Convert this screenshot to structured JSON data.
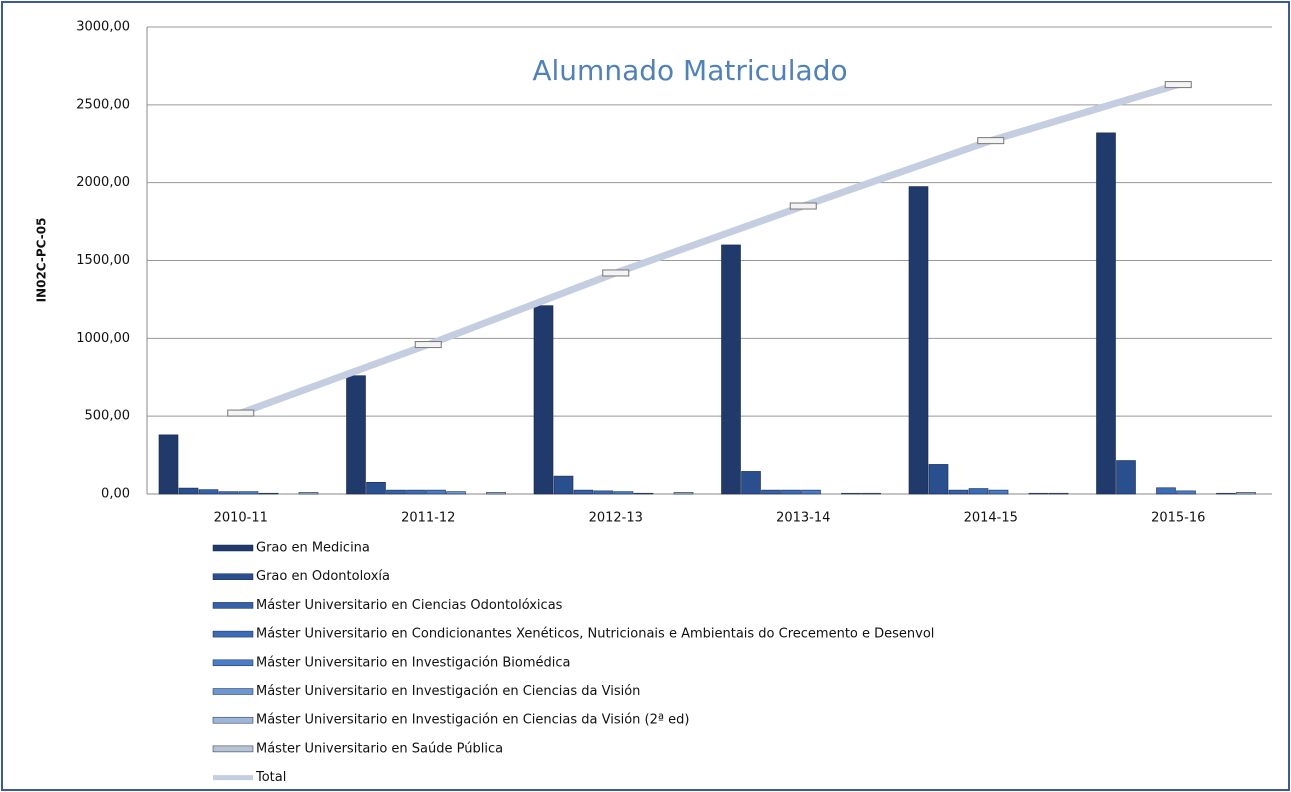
{
  "chart_data": {
    "type": "bar",
    "title": "Alumnado Matriculado",
    "y_label": "IN02C-PC-05",
    "categories": [
      "2010-11",
      "2011-12",
      "2012-13",
      "2013-14",
      "2014-15",
      "2015-16"
    ],
    "series": [
      {
        "name": "Grao en Medicina",
        "color": "#1f3a6b",
        "values": [
          380,
          760,
          1210,
          1600,
          1975,
          2320
        ]
      },
      {
        "name": "Grao en Odontoloxía",
        "color": "#2a4f8f",
        "values": [
          38,
          75,
          115,
          145,
          190,
          215
        ]
      },
      {
        "name": "Máster Universitario en Ciencias Odontolóxicas",
        "color": "#3461a8",
        "values": [
          28,
          25,
          25,
          25,
          25,
          null
        ]
      },
      {
        "name": "Máster Universitario en Condicionantes Xenéticos, Nutricionais e Ambientais do Crecemento e Desenvol",
        "color": "#3b6cb8",
        "values": [
          15,
          25,
          20,
          25,
          35,
          40
        ]
      },
      {
        "name": "Máster Universitario en Investigación Biomédica",
        "color": "#4a7dc8",
        "values": [
          15,
          25,
          15,
          25,
          25,
          20
        ]
      },
      {
        "name": "Máster Universitario en Investigación en Ciencias da Visión",
        "color": "#6f97cf",
        "values": [
          5,
          15,
          5,
          null,
          null,
          null
        ]
      },
      {
        "name": "Máster Universitario en Investigación en Ciencias da Visión (2ª ed)",
        "color": "#9db6d8",
        "values": [
          null,
          null,
          null,
          5,
          5,
          5
        ]
      },
      {
        "name": "Máster Universitario en Saúde Pública",
        "color": "#b8c4d4",
        "values": [
          10,
          10,
          10,
          5,
          5,
          10
        ]
      },
      {
        "name": "Total",
        "color": "#c5cde0",
        "type": "line",
        "values": [
          520,
          960,
          1420,
          1850,
          2270,
          2630
        ]
      }
    ],
    "ylim": [
      0,
      3000
    ],
    "yticks": [
      {
        "value": 0,
        "label": "0,00"
      },
      {
        "value": 500,
        "label": "500,00"
      },
      {
        "value": 1000,
        "label": "1000,00"
      },
      {
        "value": 1500,
        "label": "1500,00"
      },
      {
        "value": 2000,
        "label": "2000,00"
      },
      {
        "value": 2500,
        "label": "2500,00"
      },
      {
        "value": 3000,
        "label": "3000,00"
      }
    ],
    "grid": true
  }
}
